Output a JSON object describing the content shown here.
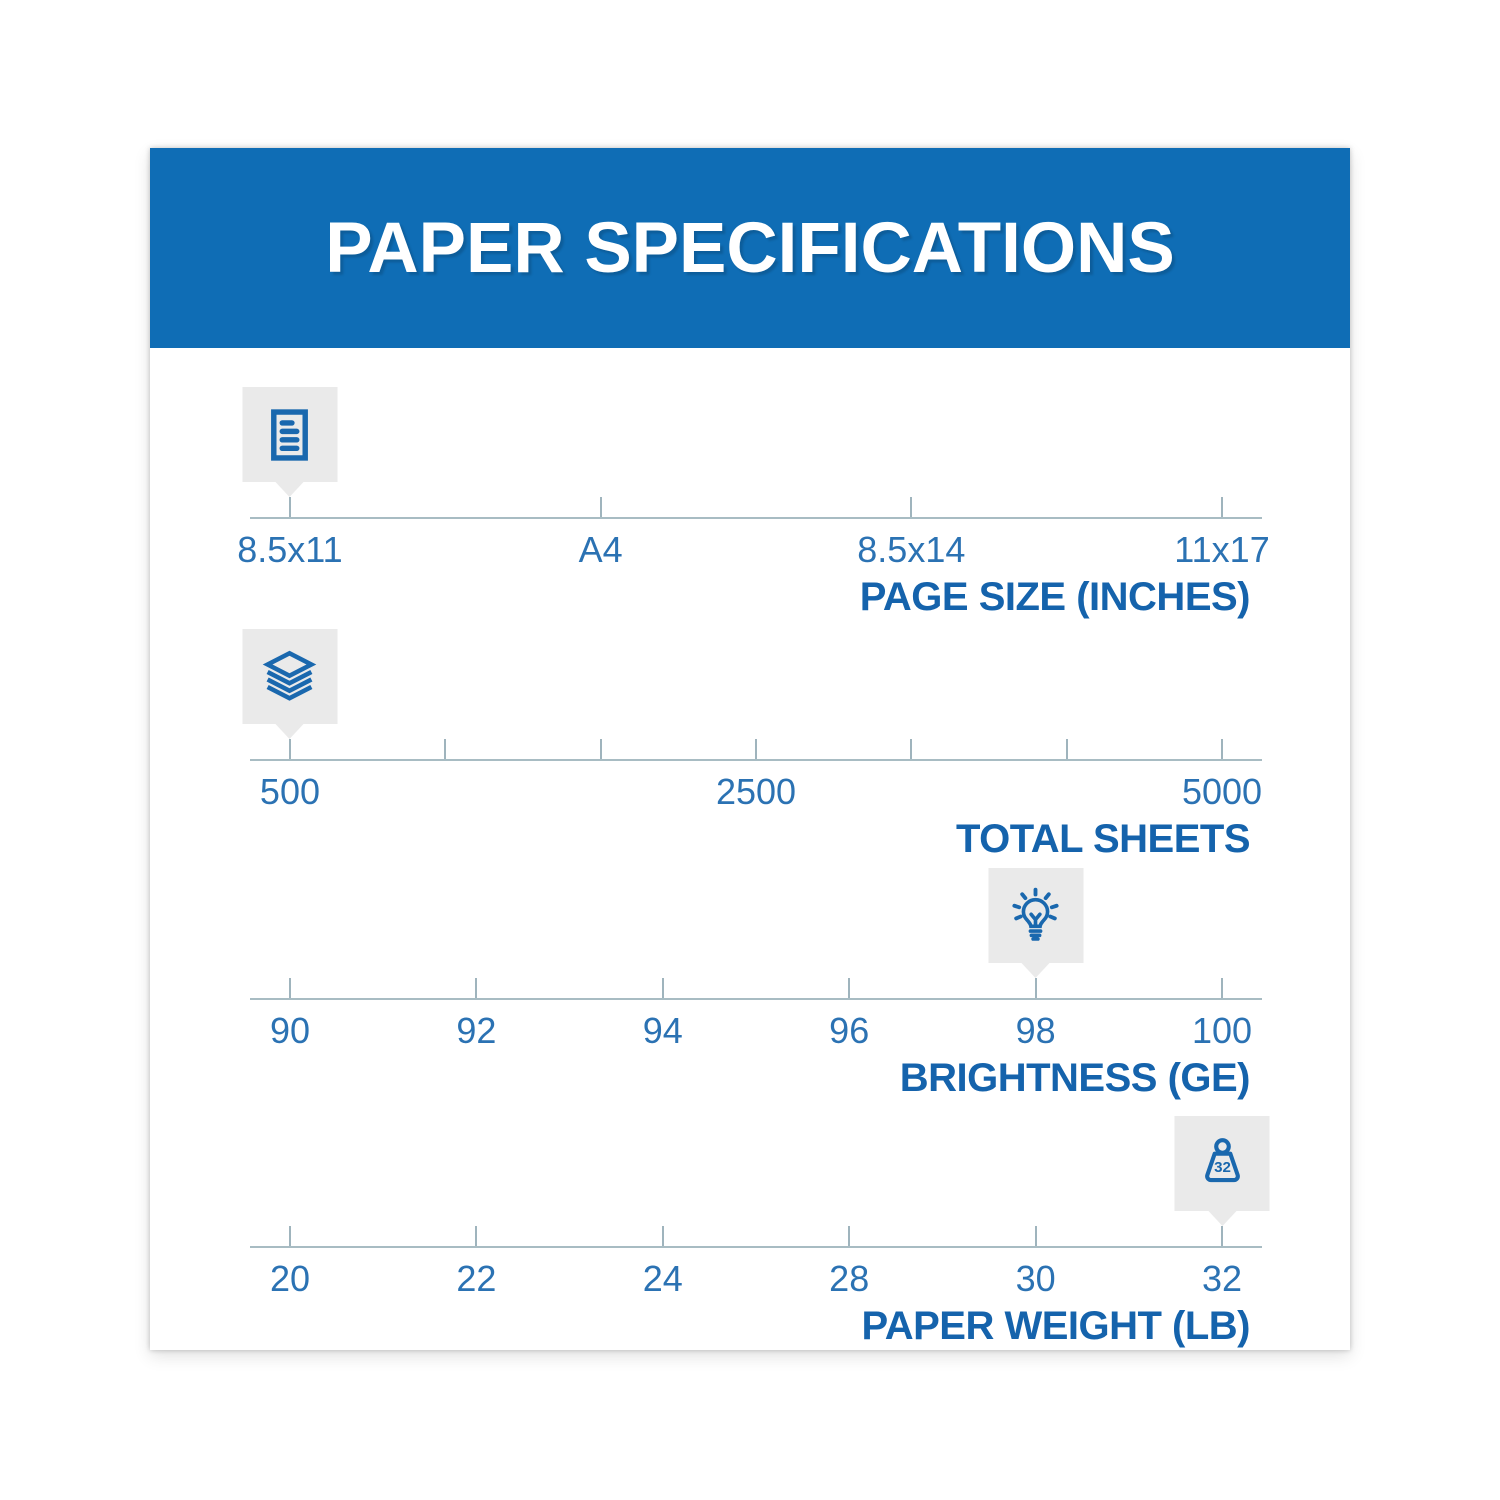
{
  "title": "PAPER SPECIFICATIONS",
  "colors": {
    "banner_blue": "#0f6db5",
    "axis_label_blue": "#1563ac",
    "tick_label_blue": "#2b72b3",
    "icon_blue": "#1a68ae",
    "scale_line_gray": "#a8bcc3",
    "badge_gray": "#eaeaea"
  },
  "scales": [
    {
      "axis_label": "PAGE SIZE (INCHES)",
      "tick_labels": [
        "8.5x11",
        "A4",
        "8.5x14",
        "11x17"
      ],
      "marker": {
        "tick": 0,
        "icon": "document-icon",
        "selected_value": "8.5x11"
      }
    },
    {
      "axis_label": "TOTAL SHEETS",
      "tick_labels": [
        "500",
        "",
        "",
        "2500",
        "",
        "",
        "5000"
      ],
      "marker": {
        "tick": 0,
        "icon": "paper-stack-icon",
        "selected_value": "500"
      }
    },
    {
      "axis_label": "BRIGHTNESS (GE)",
      "tick_labels": [
        "90",
        "92",
        "94",
        "96",
        "98",
        "100"
      ],
      "marker": {
        "tick": 4,
        "icon": "lightbulb-icon",
        "selected_value": "98"
      }
    },
    {
      "axis_label": "PAPER WEIGHT (LB)",
      "tick_labels": [
        "20",
        "22",
        "24",
        "28",
        "30",
        "32"
      ],
      "marker": {
        "tick": 5,
        "icon": "weight-icon",
        "value": "32",
        "selected_value": "32"
      }
    }
  ]
}
